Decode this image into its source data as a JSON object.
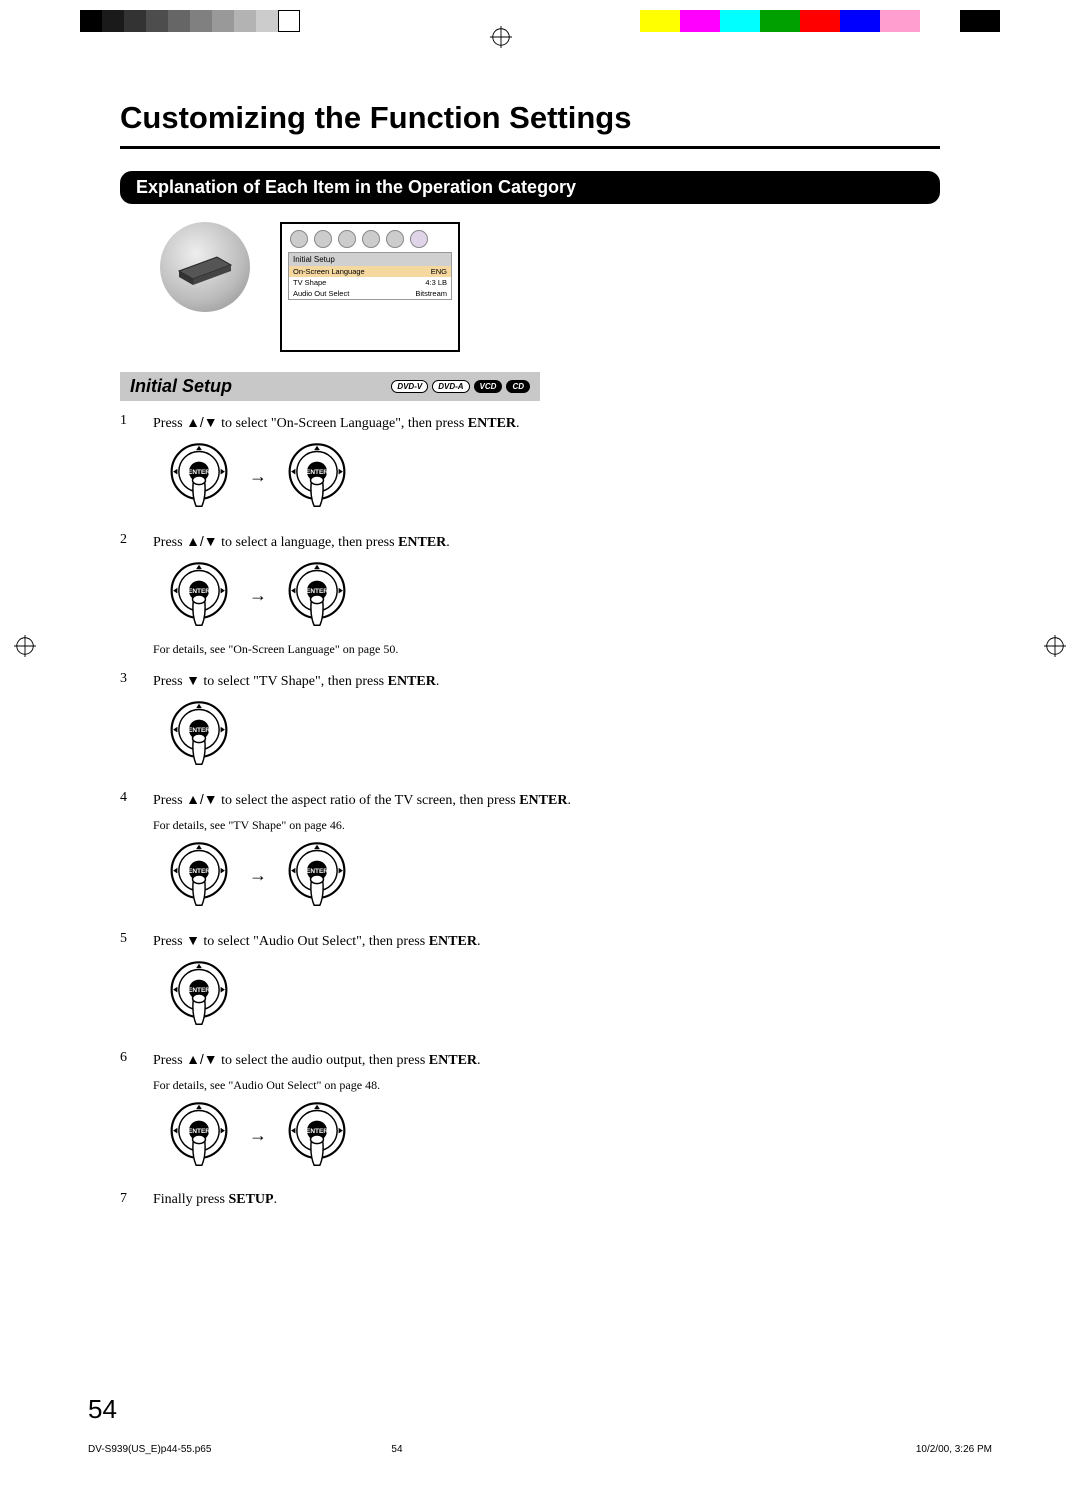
{
  "colorbar": {
    "grays": [
      "#000000",
      "#1a1a1a",
      "#333333",
      "#4d4d4d",
      "#666666",
      "#808080",
      "#999999",
      "#b3b3b3",
      "#cccccc",
      "#ffffff"
    ],
    "colors": [
      "#ffff00",
      "#ff00ff",
      "#00ffff",
      "#00a000",
      "#ff0000",
      "#0000ff",
      "#ff9ecf",
      "#ffffff",
      "#000000"
    ]
  },
  "title": "Customizing the Function Settings",
  "section_header": "Explanation of Each Item in the Operation Category",
  "menu": {
    "header": "Initial Setup",
    "rows": [
      {
        "label": "On-Screen Language",
        "value": "ENG",
        "selected": true
      },
      {
        "label": "TV Shape",
        "value": "4:3 LB",
        "selected": false
      },
      {
        "label": "Audio Out Select",
        "value": "Bitstream",
        "selected": false
      }
    ]
  },
  "subsection": {
    "title": "Initial Setup"
  },
  "badges": [
    "DVD-V",
    "DVD-A",
    "VCD",
    "CD"
  ],
  "dial_label": "ENTER",
  "steps": [
    {
      "num": "1",
      "pre": "Press ",
      "icon": "updown",
      "mid": " to select \"On-Screen Language\", then press ",
      "bold": "ENTER",
      "post": ".",
      "dials": 2,
      "note": ""
    },
    {
      "num": "2",
      "pre": "Press ",
      "icon": "updown",
      "mid": " to select a language, then press ",
      "bold": "ENTER",
      "post": ".",
      "dials": 2,
      "note": "For details, see \"On-Screen Language\" on page 50."
    },
    {
      "num": "3",
      "pre": "Press ",
      "icon": "down",
      "mid": " to select \"TV Shape\", then press ",
      "bold": "ENTER",
      "post": ".",
      "dials": 1,
      "note": ""
    },
    {
      "num": "4",
      "pre": "Press ",
      "icon": "updown",
      "mid": " to select the aspect ratio of the TV screen, then press ",
      "bold": "ENTER",
      "post": ".",
      "dials": 2,
      "note": "For details, see \"TV Shape\" on page 46.",
      "note_before_dial": true
    },
    {
      "num": "5",
      "pre": "Press ",
      "icon": "down",
      "mid": " to select \"Audio Out Select\", then press ",
      "bold": "ENTER",
      "post": ".",
      "dials": 1,
      "note": ""
    },
    {
      "num": "6",
      "pre": "Press ",
      "icon": "updown",
      "mid": " to select the audio output, then press ",
      "bold": "ENTER",
      "post": ".",
      "dials": 2,
      "note": "For details, see \"Audio Out Select\" on page 48.",
      "note_before_dial": true
    },
    {
      "num": "7",
      "pre": "Finally press ",
      "icon": "",
      "mid": "",
      "bold": "SETUP",
      "post": ".",
      "dials": 0,
      "note": ""
    }
  ],
  "page_number": "54",
  "footer": {
    "file": "DV-S939(US_E)p44-55.p65",
    "page": "54",
    "datetime": "10/2/00, 3:26 PM"
  }
}
